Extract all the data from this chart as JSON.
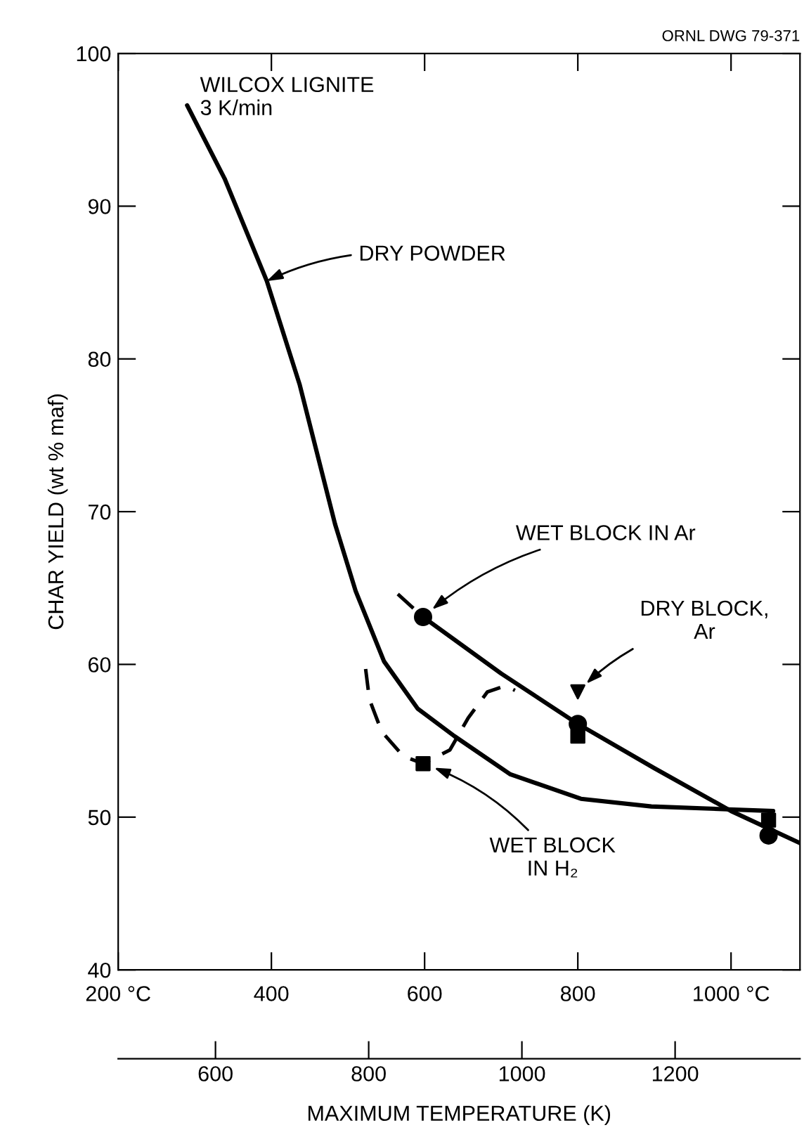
{
  "chart_data": {
    "type": "line",
    "ylabel": "CHAR YIELD (wt % maf)",
    "x2label": "MAXIMUM TEMPERATURE (K)",
    "annotations": [
      "WILCOX LIGNITE\n3 K/min",
      "ORNL DWG 79-371"
    ],
    "xlim": [
      200,
      1090
    ],
    "xticks": [
      {
        "value": 200,
        "label": "200 °C"
      },
      400,
      600,
      800,
      {
        "value": 1000,
        "label": "1000 °C"
      }
    ],
    "x2lim": [
      473,
      1363
    ],
    "x2ticks": [
      600,
      800,
      1000,
      1200
    ],
    "ylim": [
      40,
      100
    ],
    "yticks": [
      40,
      50,
      60,
      70,
      80,
      90,
      100
    ],
    "grid": false,
    "series": [
      {
        "name": "DRY POWDER",
        "color": "#000000",
        "line_style": "solid",
        "marker": "none",
        "x": [
          290,
          339,
          394,
          437,
          483,
          510,
          547,
          591,
          639,
          712,
          804,
          896,
          1055
        ],
        "values": [
          96.6,
          91.8,
          85.1,
          78.3,
          69.2,
          64.8,
          60.2,
          57.1,
          55.3,
          52.8,
          51.2,
          50.7,
          50.4
        ]
      },
      {
        "name": "WET BLOCK IN Ar",
        "type": "scatter",
        "color": "#000000",
        "marker": "circle",
        "x": [
          598,
          800,
          1049
        ],
        "values": [
          63.1,
          56.1,
          48.8
        ]
      },
      {
        "color": "#000000",
        "line_style": "solid",
        "marker": "none",
        "x": [
          598,
          700,
          800,
          900,
          1000,
          1090
        ],
        "values": [
          63.1,
          59.4,
          56.1,
          53.2,
          50.4,
          48.3
        ]
      },
      {
        "color": "#000000",
        "line_style": "dashed",
        "marker": "none",
        "x": [
          565,
          598
        ],
        "values": [
          64.6,
          63.1
        ]
      },
      {
        "name": "DRY BLOCK,\nAr",
        "type": "scatter",
        "color": "#000000",
        "marker": "triangle",
        "x": [
          800
        ],
        "values": [
          58.2
        ]
      },
      {
        "name": "WET BLOCK\nIN H₂",
        "type": "scatter",
        "color": "#000000",
        "marker": "square",
        "x": [
          598,
          800,
          1049
        ],
        "values": [
          53.5,
          55.3,
          49.8
        ]
      },
      {
        "color": "#000000",
        "line_style": "dashed",
        "marker": "none",
        "x": [
          523,
          528,
          544,
          572,
          598,
          633,
          657,
          682,
          706,
          718
        ],
        "values": [
          59.7,
          57.7,
          55.6,
          54.0,
          53.5,
          54.4,
          56.5,
          58.2,
          58.6,
          58.3
        ]
      }
    ]
  }
}
